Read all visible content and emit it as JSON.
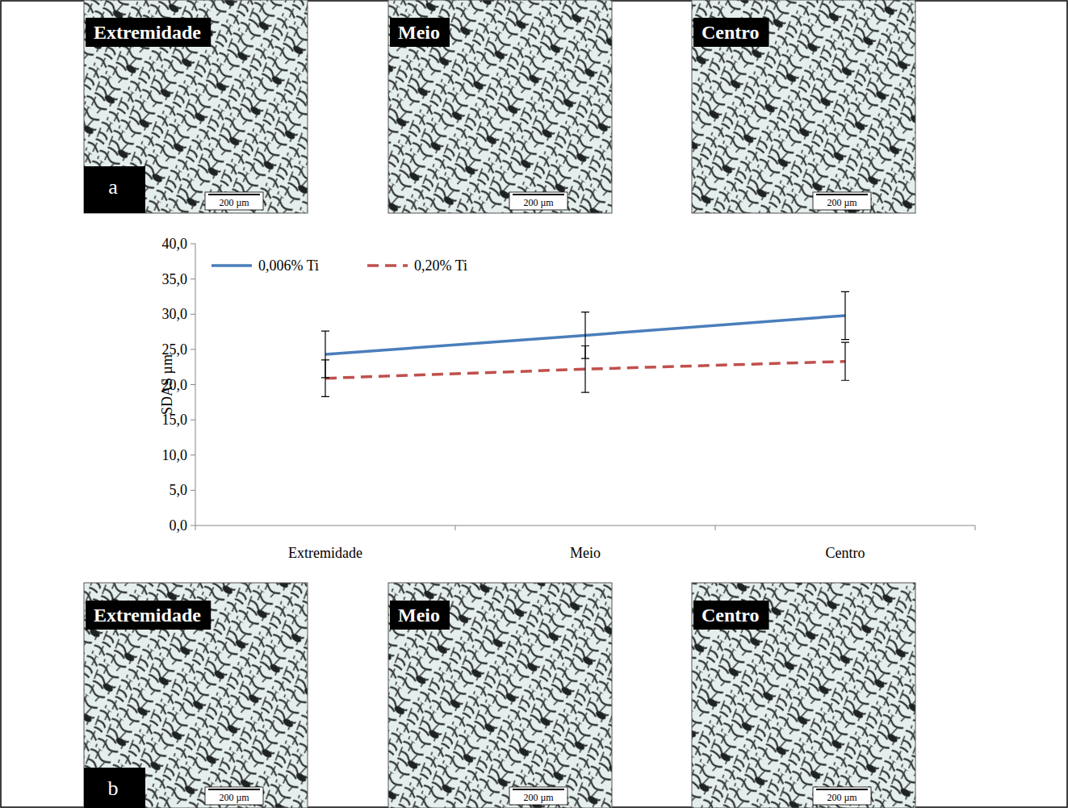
{
  "chart_data": {
    "type": "line",
    "ylabel": "SDAS µm",
    "categories": [
      "Extremidade",
      "Meio",
      "Centro"
    ],
    "series": [
      {
        "name": "0,006% Ti",
        "color": "#4a7ebb",
        "line_style": "solid",
        "values": [
          24.3,
          27.0,
          29.8
        ],
        "errors": [
          3.3,
          3.3,
          3.4
        ]
      },
      {
        "name": "0,20% Ti",
        "color": "#c0504d",
        "line_style": "dashed",
        "values": [
          20.9,
          22.2,
          23.3
        ],
        "errors": [
          2.6,
          3.3,
          2.7
        ]
      }
    ],
    "ylim": [
      0,
      40
    ],
    "yticks": [
      {
        "value": 0,
        "label": "0,0"
      },
      {
        "value": 5,
        "label": "5,0"
      },
      {
        "value": 10,
        "label": "10,0"
      },
      {
        "value": 15,
        "label": "15,0"
      },
      {
        "value": 20,
        "label": "20,0"
      },
      {
        "value": 25,
        "label": "25,0"
      },
      {
        "value": 30,
        "label": "30,0"
      },
      {
        "value": 35,
        "label": "35,0"
      },
      {
        "value": 40,
        "label": "40,0"
      }
    ],
    "grid": false,
    "legend": "top-left"
  },
  "micrographs": [
    {
      "letter": "a",
      "panels": [
        {
          "label": "Extremidade",
          "scale_bar": "200 µm"
        },
        {
          "label": "Meio",
          "scale_bar": "200 µm"
        },
        {
          "label": "Centro",
          "scale_bar": "200 µm"
        }
      ]
    },
    {
      "letter": "b",
      "panels": [
        {
          "label": "Extremidade",
          "scale_bar": "200 µm"
        },
        {
          "label": "Meio",
          "scale_bar": "200 µm"
        },
        {
          "label": "Centro",
          "scale_bar": "200 µm"
        }
      ]
    }
  ]
}
